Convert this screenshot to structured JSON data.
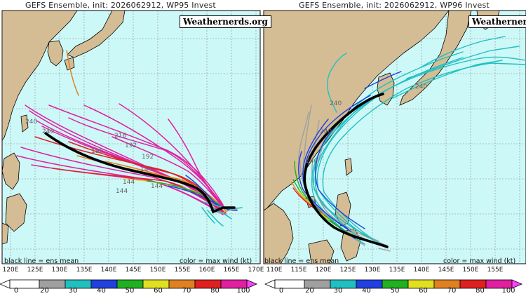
{
  "panels": [
    {
      "title": "GEFS Ensemble, init: 2026062912, WP95 Invest",
      "brand": "Weathernerds.org",
      "footer_left": "black line = ens mean",
      "footer_right": "color = max wind (kt)",
      "lon_ticks": [
        "120E",
        "125E",
        "130E",
        "135E",
        "140E",
        "145E",
        "150E",
        "155E",
        "160E",
        "165E",
        "170E"
      ],
      "track_hour_labels": [
        "216",
        "240",
        "192",
        "192",
        "192",
        "144",
        "144",
        "144",
        "144",
        "240"
      ]
    },
    {
      "title": "GEFS Ensemble, init: 2026062912, WP96 Invest",
      "brand": "Weathernerds.org",
      "footer_left": "black line = ens mean",
      "footer_right": "color = max wind (kt)",
      "lon_ticks": [
        "110E",
        "115E",
        "120E",
        "125E",
        "130E",
        "135E",
        "140E",
        "145E",
        "150E",
        "155E"
      ],
      "track_hour_labels": [
        "240",
        "240",
        "240",
        "240"
      ]
    }
  ],
  "colorbar": {
    "ticks": [
      "0",
      "20",
      "30",
      "40",
      "50",
      "60",
      "70",
      "80",
      "100"
    ],
    "colors": [
      "#a0a0a0",
      "#20c0c0",
      "#2040e0",
      "#20b020",
      "#e0e020",
      "#e08020",
      "#e02020",
      "#e020a0"
    ]
  },
  "colors": {
    "ocean": "#cdf8f8",
    "land": "#d4bd94",
    "coast": "#000000",
    "mean_track": "#000000"
  }
}
